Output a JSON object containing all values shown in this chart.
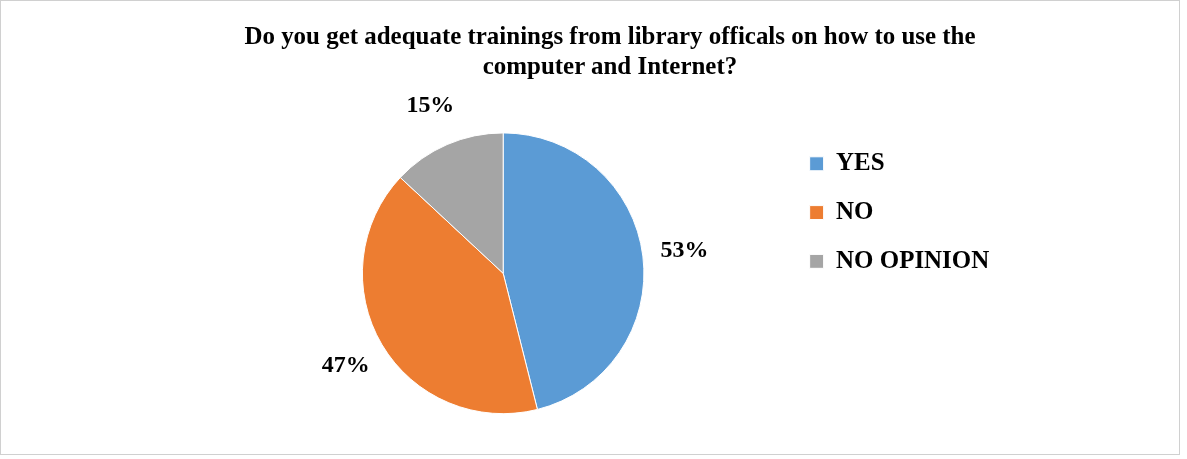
{
  "chart_data": {
    "type": "pie",
    "title": "Do you get adequate trainings from library officals on how to use the computer and Internet?",
    "categories": [
      "YES",
      "NO",
      "NO OPINION"
    ],
    "values": [
      53,
      47,
      15
    ],
    "colors": [
      "#5b9bd5",
      "#ed7d31",
      "#a5a5a5"
    ],
    "value_labels": [
      "53%",
      "47%",
      "15%"
    ],
    "legend": "right"
  }
}
